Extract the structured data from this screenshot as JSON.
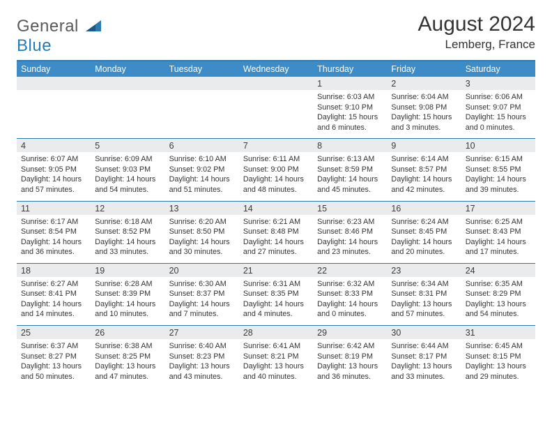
{
  "brand": {
    "text1": "General",
    "text2": "Blue",
    "color1": "#5a5a5a",
    "color2": "#2a7ab0"
  },
  "title": "August 2024",
  "location": "Lemberg, France",
  "header_bg": "#3d8cc7",
  "daynum_bg": "#e9ebed",
  "border_color": "#2a7ab0",
  "days_of_week": [
    "Sunday",
    "Monday",
    "Tuesday",
    "Wednesday",
    "Thursday",
    "Friday",
    "Saturday"
  ],
  "weeks": [
    {
      "nums": [
        "",
        "",
        "",
        "",
        "1",
        "2",
        "3"
      ],
      "cells": [
        {
          "sunrise": "",
          "sunset": "",
          "daylight": ""
        },
        {
          "sunrise": "",
          "sunset": "",
          "daylight": ""
        },
        {
          "sunrise": "",
          "sunset": "",
          "daylight": ""
        },
        {
          "sunrise": "",
          "sunset": "",
          "daylight": ""
        },
        {
          "sunrise": "Sunrise: 6:03 AM",
          "sunset": "Sunset: 9:10 PM",
          "daylight": "Daylight: 15 hours and 6 minutes."
        },
        {
          "sunrise": "Sunrise: 6:04 AM",
          "sunset": "Sunset: 9:08 PM",
          "daylight": "Daylight: 15 hours and 3 minutes."
        },
        {
          "sunrise": "Sunrise: 6:06 AM",
          "sunset": "Sunset: 9:07 PM",
          "daylight": "Daylight: 15 hours and 0 minutes."
        }
      ]
    },
    {
      "nums": [
        "4",
        "5",
        "6",
        "7",
        "8",
        "9",
        "10"
      ],
      "cells": [
        {
          "sunrise": "Sunrise: 6:07 AM",
          "sunset": "Sunset: 9:05 PM",
          "daylight": "Daylight: 14 hours and 57 minutes."
        },
        {
          "sunrise": "Sunrise: 6:09 AM",
          "sunset": "Sunset: 9:03 PM",
          "daylight": "Daylight: 14 hours and 54 minutes."
        },
        {
          "sunrise": "Sunrise: 6:10 AM",
          "sunset": "Sunset: 9:02 PM",
          "daylight": "Daylight: 14 hours and 51 minutes."
        },
        {
          "sunrise": "Sunrise: 6:11 AM",
          "sunset": "Sunset: 9:00 PM",
          "daylight": "Daylight: 14 hours and 48 minutes."
        },
        {
          "sunrise": "Sunrise: 6:13 AM",
          "sunset": "Sunset: 8:59 PM",
          "daylight": "Daylight: 14 hours and 45 minutes."
        },
        {
          "sunrise": "Sunrise: 6:14 AM",
          "sunset": "Sunset: 8:57 PM",
          "daylight": "Daylight: 14 hours and 42 minutes."
        },
        {
          "sunrise": "Sunrise: 6:15 AM",
          "sunset": "Sunset: 8:55 PM",
          "daylight": "Daylight: 14 hours and 39 minutes."
        }
      ]
    },
    {
      "nums": [
        "11",
        "12",
        "13",
        "14",
        "15",
        "16",
        "17"
      ],
      "cells": [
        {
          "sunrise": "Sunrise: 6:17 AM",
          "sunset": "Sunset: 8:54 PM",
          "daylight": "Daylight: 14 hours and 36 minutes."
        },
        {
          "sunrise": "Sunrise: 6:18 AM",
          "sunset": "Sunset: 8:52 PM",
          "daylight": "Daylight: 14 hours and 33 minutes."
        },
        {
          "sunrise": "Sunrise: 6:20 AM",
          "sunset": "Sunset: 8:50 PM",
          "daylight": "Daylight: 14 hours and 30 minutes."
        },
        {
          "sunrise": "Sunrise: 6:21 AM",
          "sunset": "Sunset: 8:48 PM",
          "daylight": "Daylight: 14 hours and 27 minutes."
        },
        {
          "sunrise": "Sunrise: 6:23 AM",
          "sunset": "Sunset: 8:46 PM",
          "daylight": "Daylight: 14 hours and 23 minutes."
        },
        {
          "sunrise": "Sunrise: 6:24 AM",
          "sunset": "Sunset: 8:45 PM",
          "daylight": "Daylight: 14 hours and 20 minutes."
        },
        {
          "sunrise": "Sunrise: 6:25 AM",
          "sunset": "Sunset: 8:43 PM",
          "daylight": "Daylight: 14 hours and 17 minutes."
        }
      ]
    },
    {
      "nums": [
        "18",
        "19",
        "20",
        "21",
        "22",
        "23",
        "24"
      ],
      "cells": [
        {
          "sunrise": "Sunrise: 6:27 AM",
          "sunset": "Sunset: 8:41 PM",
          "daylight": "Daylight: 14 hours and 14 minutes."
        },
        {
          "sunrise": "Sunrise: 6:28 AM",
          "sunset": "Sunset: 8:39 PM",
          "daylight": "Daylight: 14 hours and 10 minutes."
        },
        {
          "sunrise": "Sunrise: 6:30 AM",
          "sunset": "Sunset: 8:37 PM",
          "daylight": "Daylight: 14 hours and 7 minutes."
        },
        {
          "sunrise": "Sunrise: 6:31 AM",
          "sunset": "Sunset: 8:35 PM",
          "daylight": "Daylight: 14 hours and 4 minutes."
        },
        {
          "sunrise": "Sunrise: 6:32 AM",
          "sunset": "Sunset: 8:33 PM",
          "daylight": "Daylight: 14 hours and 0 minutes."
        },
        {
          "sunrise": "Sunrise: 6:34 AM",
          "sunset": "Sunset: 8:31 PM",
          "daylight": "Daylight: 13 hours and 57 minutes."
        },
        {
          "sunrise": "Sunrise: 6:35 AM",
          "sunset": "Sunset: 8:29 PM",
          "daylight": "Daylight: 13 hours and 54 minutes."
        }
      ]
    },
    {
      "nums": [
        "25",
        "26",
        "27",
        "28",
        "29",
        "30",
        "31"
      ],
      "cells": [
        {
          "sunrise": "Sunrise: 6:37 AM",
          "sunset": "Sunset: 8:27 PM",
          "daylight": "Daylight: 13 hours and 50 minutes."
        },
        {
          "sunrise": "Sunrise: 6:38 AM",
          "sunset": "Sunset: 8:25 PM",
          "daylight": "Daylight: 13 hours and 47 minutes."
        },
        {
          "sunrise": "Sunrise: 6:40 AM",
          "sunset": "Sunset: 8:23 PM",
          "daylight": "Daylight: 13 hours and 43 minutes."
        },
        {
          "sunrise": "Sunrise: 6:41 AM",
          "sunset": "Sunset: 8:21 PM",
          "daylight": "Daylight: 13 hours and 40 minutes."
        },
        {
          "sunrise": "Sunrise: 6:42 AM",
          "sunset": "Sunset: 8:19 PM",
          "daylight": "Daylight: 13 hours and 36 minutes."
        },
        {
          "sunrise": "Sunrise: 6:44 AM",
          "sunset": "Sunset: 8:17 PM",
          "daylight": "Daylight: 13 hours and 33 minutes."
        },
        {
          "sunrise": "Sunrise: 6:45 AM",
          "sunset": "Sunset: 8:15 PM",
          "daylight": "Daylight: 13 hours and 29 minutes."
        }
      ]
    }
  ]
}
